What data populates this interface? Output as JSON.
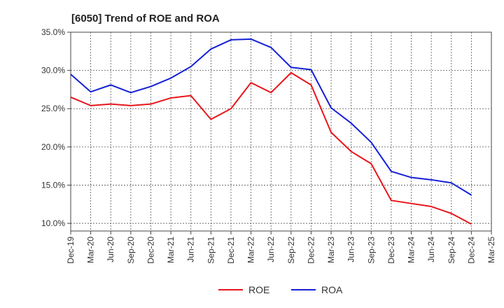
{
  "chart_data": {
    "type": "line",
    "title": "[6050]  Trend of ROE and ROA",
    "xlabel": "",
    "ylabel": "",
    "x": [
      "Dec-19",
      "Mar-20",
      "Jun-20",
      "Sep-20",
      "Dec-20",
      "Mar-21",
      "Jun-21",
      "Sep-21",
      "Dec-21",
      "Mar-22",
      "Jun-22",
      "Sep-22",
      "Dec-22",
      "Mar-23",
      "Jun-23",
      "Sep-23",
      "Dec-23",
      "Mar-24",
      "Jun-24",
      "Sep-24",
      "Dec-24",
      "Mar-25"
    ],
    "y_ticks": [
      "10.0%",
      "15.0%",
      "20.0%",
      "25.0%",
      "30.0%",
      "35.0%"
    ],
    "ylim": [
      9.0,
      35.0
    ],
    "grid": true,
    "legend_position": "bottom",
    "series": [
      {
        "name": "ROE",
        "color": "#e8161b",
        "values": [
          26.5,
          25.4,
          25.6,
          25.4,
          25.6,
          26.4,
          26.7,
          23.6,
          25.0,
          28.4,
          27.1,
          29.7,
          28.1,
          21.9,
          19.4,
          17.8,
          13.0,
          12.6,
          12.2,
          11.3,
          9.9,
          null
        ]
      },
      {
        "name": "ROA",
        "color": "#1520d6",
        "values": [
          29.5,
          27.2,
          28.1,
          27.1,
          27.9,
          29.0,
          30.5,
          32.8,
          34.0,
          34.1,
          33.0,
          30.4,
          30.1,
          25.1,
          23.1,
          20.6,
          16.8,
          16.0,
          15.7,
          15.3,
          13.7,
          null
        ]
      }
    ]
  }
}
